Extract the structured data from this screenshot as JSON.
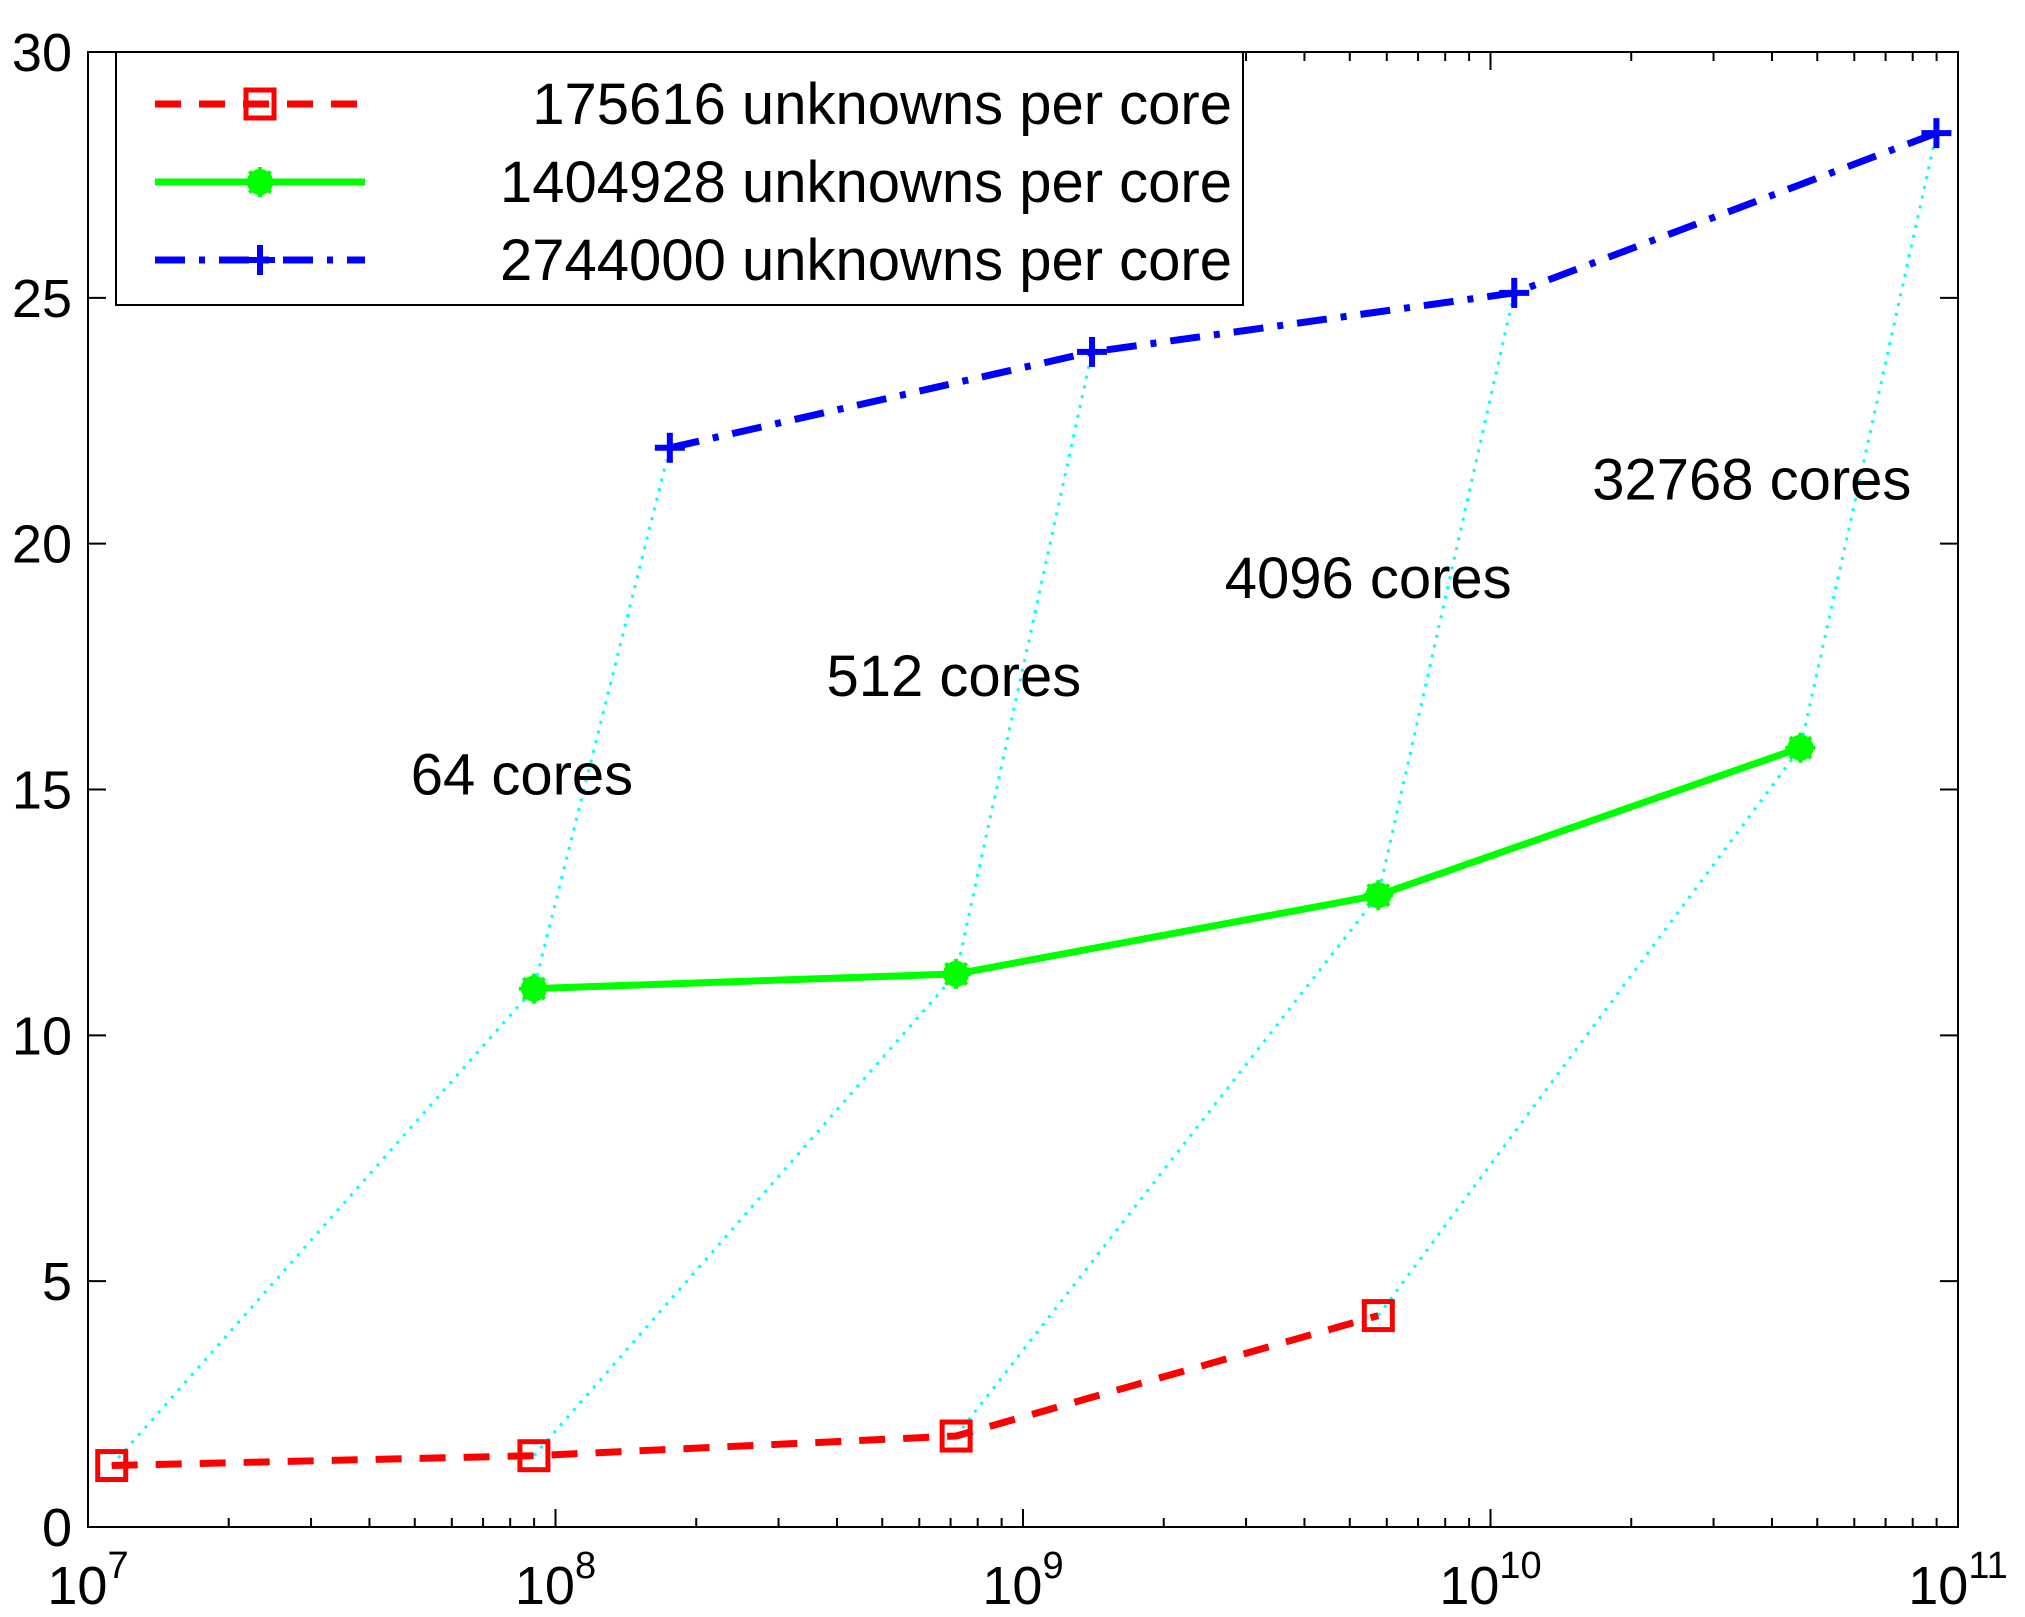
{
  "chart_data": {
    "type": "line",
    "x_scale": "log",
    "xlim": [
      10000000,
      100000000000
    ],
    "ylim": [
      0,
      30
    ],
    "x_ticks": [
      {
        "value": 10000000,
        "base": "10",
        "exp": "7"
      },
      {
        "value": 100000000,
        "base": "10",
        "exp": "8"
      },
      {
        "value": 1000000000,
        "base": "10",
        "exp": "9"
      },
      {
        "value": 10000000000,
        "base": "10",
        "exp": "10"
      },
      {
        "value": 100000000000,
        "base": "10",
        "exp": "11"
      }
    ],
    "y_ticks": [
      {
        "value": 0,
        "label": "0"
      },
      {
        "value": 5,
        "label": "5"
      },
      {
        "value": 10,
        "label": "10"
      },
      {
        "value": 15,
        "label": "15"
      },
      {
        "value": 20,
        "label": "20"
      },
      {
        "value": 25,
        "label": "25"
      },
      {
        "value": 30,
        "label": "30"
      }
    ],
    "grid": false,
    "legend_position": "top-left",
    "series": [
      {
        "name": "175616 unknowns per core",
        "color": "#ff0000",
        "marker": "square",
        "line_style": "dashed",
        "x": [
          11239424,
          89915392,
          719323136,
          5754585088
        ],
        "y": [
          1.25,
          1.45,
          1.85,
          4.3
        ]
      },
      {
        "name": "1404928 unknowns per core",
        "color": "#00ff00",
        "marker": "asterisk",
        "line_style": "solid",
        "x": [
          89915392,
          719323136,
          5754585088,
          46036680704
        ],
        "y": [
          10.95,
          11.25,
          12.85,
          15.85
        ]
      },
      {
        "name": "2744000 unknowns per core",
        "color": "#0000ff",
        "marker": "plus",
        "line_style": "dashdot",
        "x": [
          175616000,
          1404928000,
          11239424000,
          89915392000
        ],
        "y": [
          21.95,
          23.9,
          25.1,
          28.35
        ]
      }
    ],
    "connectors": {
      "color": "#00ffff",
      "line_style": "dotted",
      "lines": [
        {
          "x": [
            11239424,
            89915392,
            175616000
          ],
          "y": [
            1.25,
            10.95,
            21.95
          ]
        },
        {
          "x": [
            89915392,
            719323136,
            1404928000
          ],
          "y": [
            1.45,
            11.25,
            23.9
          ]
        },
        {
          "x": [
            719323136,
            5754585088,
            11239424000
          ],
          "y": [
            1.85,
            12.85,
            25.1
          ]
        },
        {
          "x": [
            5754585088,
            46036680704,
            89915392000
          ],
          "y": [
            4.3,
            15.85,
            28.35
          ]
        }
      ]
    },
    "annotations": [
      {
        "text": "64 cores",
        "x": 49000000,
        "y": 14.9
      },
      {
        "text": "512 cores",
        "x": 380000000,
        "y": 16.9
      },
      {
        "text": "4096 cores",
        "x": 2700000000,
        "y": 18.9
      },
      {
        "text": "32768 cores",
        "x": 16500000000,
        "y": 20.9
      }
    ]
  }
}
